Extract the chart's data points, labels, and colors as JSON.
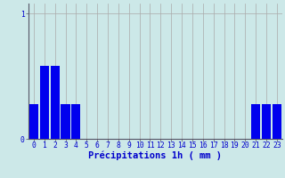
{
  "categories": [
    0,
    1,
    2,
    3,
    4,
    5,
    6,
    7,
    8,
    9,
    10,
    11,
    12,
    13,
    14,
    15,
    16,
    17,
    18,
    19,
    20,
    21,
    22,
    23
  ],
  "values": [
    0.28,
    0.58,
    0.58,
    0.28,
    0.28,
    0,
    0,
    0,
    0,
    0,
    0,
    0,
    0,
    0,
    0,
    0,
    0,
    0,
    0,
    0,
    0,
    0.28,
    0.28,
    0.28
  ],
  "bar_color": "#0000ee",
  "background_color": "#cce8e8",
  "plot_bg_color": "#cce8e8",
  "grid_color": "#aaaaaa",
  "axis_color": "#555566",
  "text_color": "#0000cc",
  "xlabel": "Précipitations 1h ( mm )",
  "ylim": [
    0,
    1.08
  ],
  "yticks": [
    0,
    1
  ],
  "xlim": [
    -0.5,
    23.5
  ],
  "xlabel_fontsize": 7.5,
  "tick_fontsize": 5.8,
  "bar_width": 0.85
}
